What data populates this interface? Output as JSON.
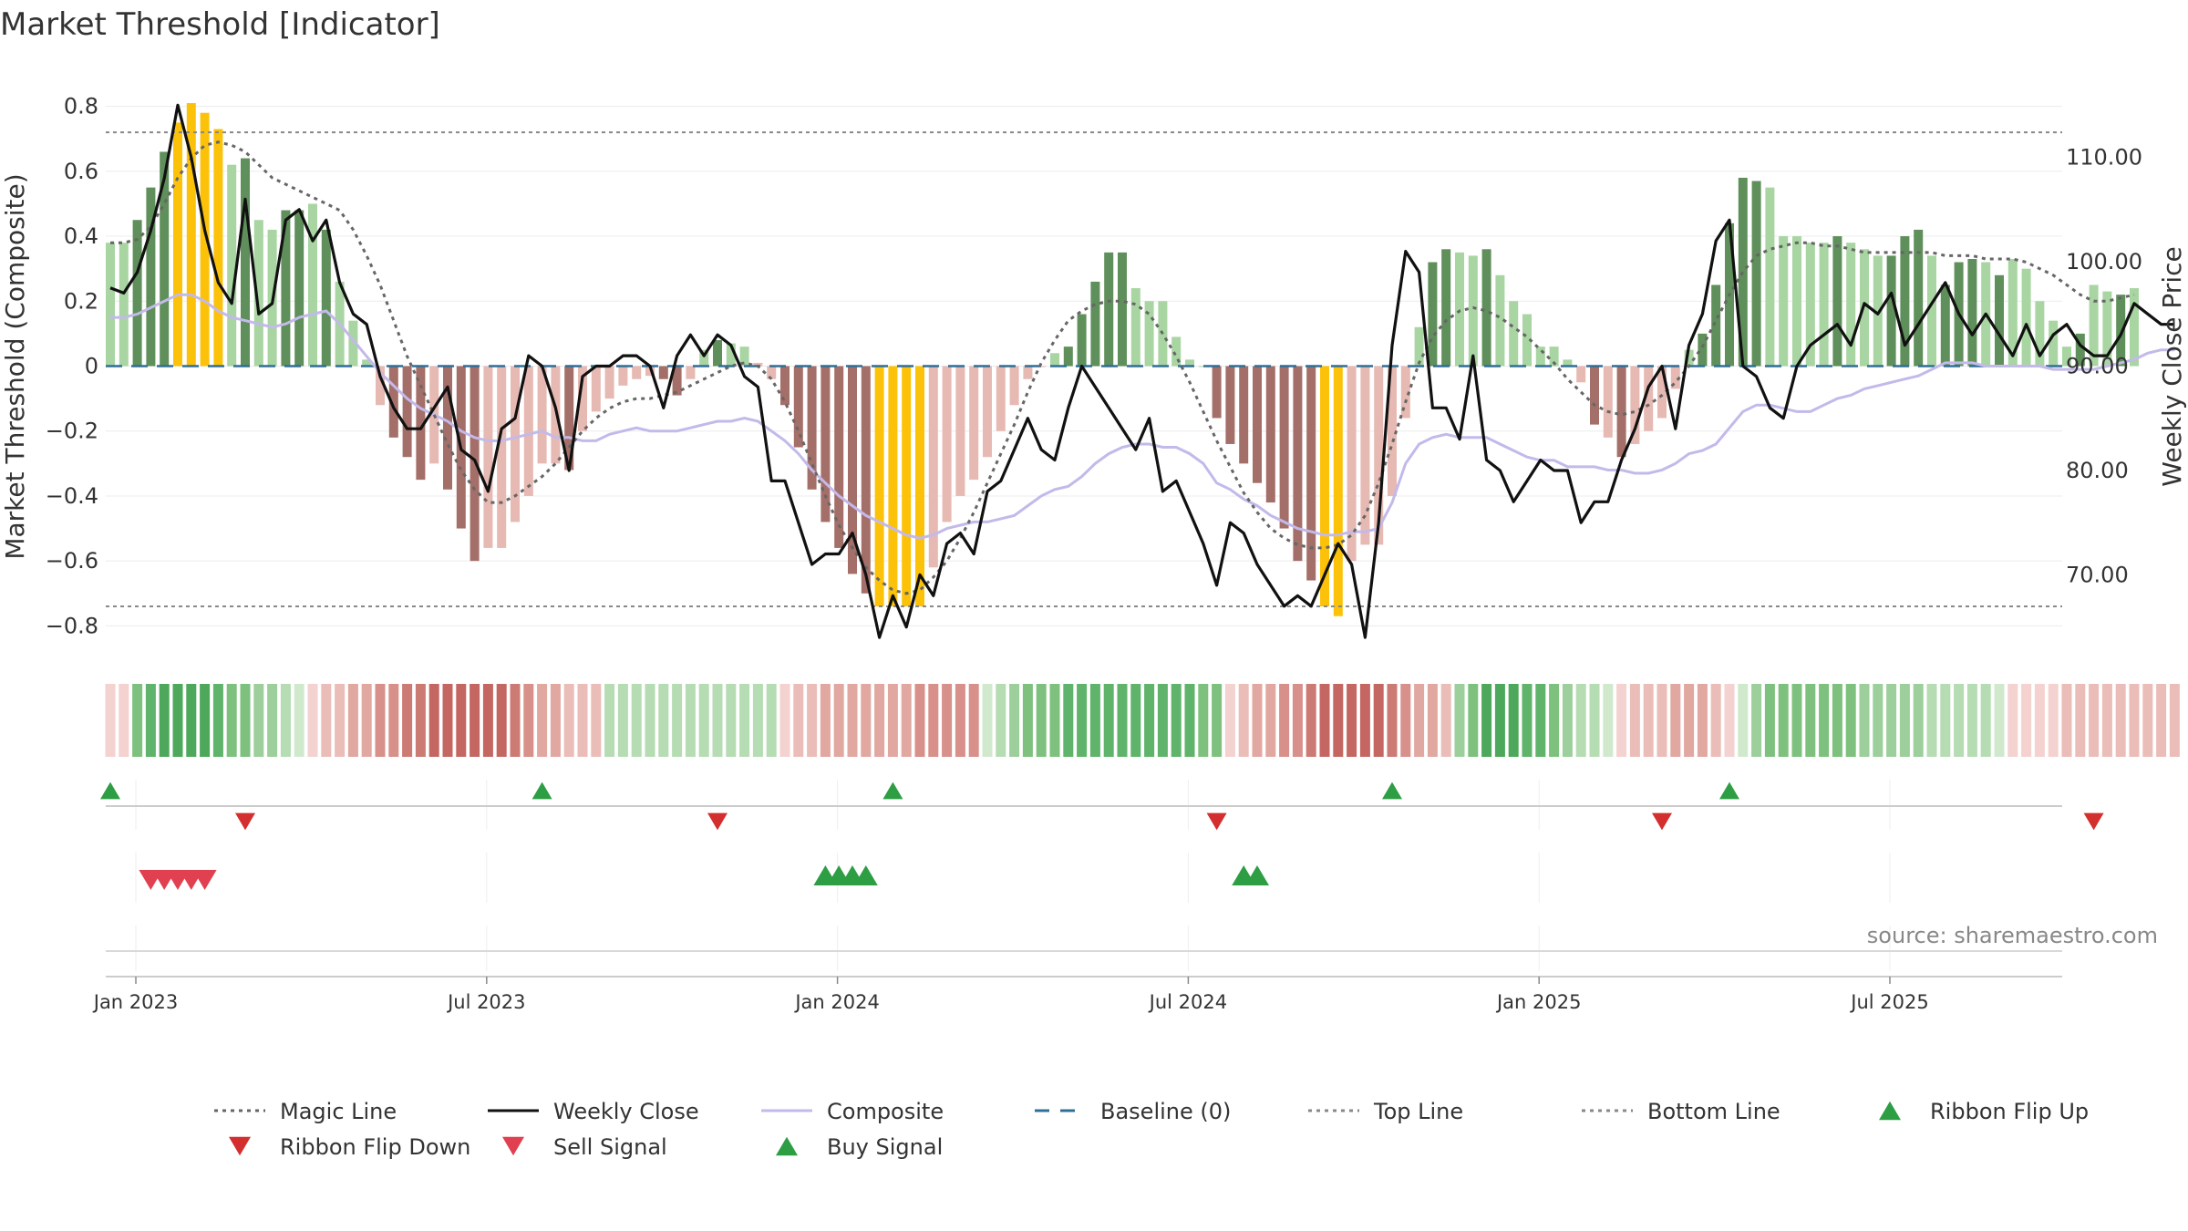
{
  "chart_data": {
    "type": "bar",
    "title": "Market Threshold [Indicator]",
    "ylabel_left": "Market Threshold (Composite)",
    "ylabel_right": "Weekly Close Price",
    "source": "source: sharemaestro.com",
    "ylim_left": [
      -0.9,
      0.9
    ],
    "ylim_right": [
      62,
      118
    ],
    "left_ticks": [
      0.8,
      0.6,
      0.4,
      0.2,
      0,
      -0.2,
      -0.4,
      -0.6,
      -0.8
    ],
    "left_tick_labels": [
      "0.8",
      "0.6",
      "0.4",
      "0.2",
      "0",
      "−0.2",
      "−0.4",
      "−0.6",
      "−0.8"
    ],
    "right_ticks": [
      110,
      100,
      90,
      80,
      70
    ],
    "right_tick_labels": [
      "110.00",
      "100.00",
      "90.00",
      "80.00",
      "70.00"
    ],
    "top_line": 0.72,
    "bottom_line": -0.74,
    "baseline": 0,
    "x_tick_weeks": [
      1,
      27,
      53,
      79,
      105,
      131
    ],
    "x_tick_labels": [
      "Jan 2023",
      "Jul 2023",
      "Jan 2024",
      "Jul 2024",
      "Jan 2025",
      "Jul 2025"
    ],
    "composite_bars": [
      0.38,
      0.38,
      0.45,
      0.55,
      0.66,
      0.75,
      0.81,
      0.78,
      0.73,
      0.62,
      0.64,
      0.45,
      0.42,
      0.48,
      0.48,
      0.5,
      0.42,
      0.26,
      0.14,
      0.02,
      -0.12,
      -0.22,
      -0.28,
      -0.35,
      -0.3,
      -0.38,
      -0.5,
      -0.6,
      -0.56,
      -0.56,
      -0.48,
      -0.4,
      -0.3,
      -0.3,
      -0.32,
      -0.2,
      -0.14,
      -0.1,
      -0.06,
      -0.04,
      -0.03,
      -0.04,
      -0.09,
      -0.04,
      0.05,
      0.08,
      0.07,
      0.06,
      0.01,
      -0.04,
      -0.12,
      -0.25,
      -0.38,
      -0.48,
      -0.56,
      -0.64,
      -0.7,
      -0.74,
      -0.74,
      -0.74,
      -0.74,
      -0.62,
      -0.48,
      -0.4,
      -0.35,
      -0.28,
      -0.2,
      -0.12,
      -0.04,
      0,
      0.04,
      0.06,
      0.16,
      0.26,
      0.35,
      0.35,
      0.24,
      0.2,
      0.2,
      0.09,
      0.02,
      0,
      -0.16,
      -0.24,
      -0.3,
      -0.36,
      -0.42,
      -0.5,
      -0.6,
      -0.66,
      -0.74,
      -0.77,
      -0.6,
      -0.55,
      -0.55,
      -0.4,
      -0.16,
      0.12,
      0.32,
      0.36,
      0.35,
      0.34,
      0.36,
      0.28,
      0.2,
      0.16,
      0.06,
      0.06,
      0.02,
      -0.05,
      -0.18,
      -0.22,
      -0.28,
      -0.24,
      -0.2,
      -0.16,
      -0.07,
      0.05,
      0.1,
      0.25,
      0.44,
      0.58,
      0.57,
      0.55,
      0.4,
      0.4,
      0.38,
      0.38,
      0.4,
      0.38,
      0.36,
      0.34,
      0.34,
      0.4,
      0.42,
      0.34,
      0.25,
      0.32,
      0.33,
      0.32,
      0.28,
      0.33,
      0.3,
      0.2,
      0.14,
      0.06,
      0.1,
      0.25,
      0.23,
      0.22,
      0.24
    ],
    "composite_line": [
      0.15,
      0.15,
      0.16,
      0.18,
      0.2,
      0.22,
      0.22,
      0.2,
      0.17,
      0.15,
      0.14,
      0.13,
      0.12,
      0.13,
      0.15,
      0.16,
      0.17,
      0.13,
      0.08,
      0.03,
      -0.02,
      -0.06,
      -0.1,
      -0.13,
      -0.15,
      -0.17,
      -0.2,
      -0.22,
      -0.23,
      -0.23,
      -0.22,
      -0.21,
      -0.2,
      -0.22,
      -0.22,
      -0.23,
      -0.23,
      -0.21,
      -0.2,
      -0.19,
      -0.2,
      -0.2,
      -0.2,
      -0.19,
      -0.18,
      -0.17,
      -0.17,
      -0.16,
      -0.17,
      -0.2,
      -0.23,
      -0.27,
      -0.32,
      -0.36,
      -0.4,
      -0.43,
      -0.46,
      -0.48,
      -0.5,
      -0.52,
      -0.53,
      -0.52,
      -0.5,
      -0.49,
      -0.48,
      -0.48,
      -0.47,
      -0.46,
      -0.43,
      -0.4,
      -0.38,
      -0.37,
      -0.34,
      -0.3,
      -0.27,
      -0.25,
      -0.24,
      -0.24,
      -0.25,
      -0.25,
      -0.27,
      -0.3,
      -0.36,
      -0.38,
      -0.41,
      -0.43,
      -0.46,
      -0.48,
      -0.5,
      -0.51,
      -0.52,
      -0.52,
      -0.51,
      -0.51,
      -0.5,
      -0.42,
      -0.3,
      -0.24,
      -0.22,
      -0.21,
      -0.22,
      -0.22,
      -0.22,
      -0.24,
      -0.26,
      -0.28,
      -0.29,
      -0.29,
      -0.31,
      -0.31,
      -0.31,
      -0.32,
      -0.32,
      -0.33,
      -0.33,
      -0.32,
      -0.3,
      -0.27,
      -0.26,
      -0.24,
      -0.19,
      -0.14,
      -0.12,
      -0.12,
      -0.13,
      -0.14,
      -0.14,
      -0.12,
      -0.1,
      -0.09,
      -0.07,
      -0.06,
      -0.05,
      -0.04,
      -0.03,
      -0.01,
      0.01,
      0.01,
      0.01,
      0,
      0,
      0,
      0,
      0,
      -0.01,
      -0.01,
      -0.01,
      -0.01,
      0,
      0.01,
      0.02,
      0.04,
      0.05,
      0.05
    ],
    "magic_line": [
      0.38,
      0.38,
      0.39,
      0.43,
      0.5,
      0.58,
      0.64,
      0.68,
      0.69,
      0.68,
      0.66,
      0.62,
      0.58,
      0.56,
      0.54,
      0.52,
      0.5,
      0.48,
      0.42,
      0.34,
      0.25,
      0.14,
      0.03,
      -0.06,
      -0.15,
      -0.24,
      -0.32,
      -0.38,
      -0.42,
      -0.42,
      -0.4,
      -0.37,
      -0.34,
      -0.3,
      -0.25,
      -0.2,
      -0.16,
      -0.13,
      -0.11,
      -0.1,
      -0.1,
      -0.09,
      -0.08,
      -0.06,
      -0.04,
      -0.02,
      0,
      0.01,
      0,
      -0.04,
      -0.11,
      -0.2,
      -0.3,
      -0.4,
      -0.49,
      -0.56,
      -0.62,
      -0.66,
      -0.69,
      -0.7,
      -0.69,
      -0.65,
      -0.6,
      -0.53,
      -0.45,
      -0.36,
      -0.27,
      -0.18,
      -0.08,
      0.01,
      0.08,
      0.14,
      0.17,
      0.19,
      0.2,
      0.2,
      0.19,
      0.16,
      0.1,
      0.03,
      -0.05,
      -0.14,
      -0.23,
      -0.31,
      -0.39,
      -0.45,
      -0.5,
      -0.53,
      -0.55,
      -0.56,
      -0.56,
      -0.55,
      -0.52,
      -0.46,
      -0.36,
      -0.24,
      -0.11,
      0.01,
      0.09,
      0.14,
      0.17,
      0.18,
      0.17,
      0.15,
      0.12,
      0.09,
      0.05,
      0.01,
      -0.04,
      -0.08,
      -0.12,
      -0.14,
      -0.15,
      -0.14,
      -0.12,
      -0.09,
      -0.05,
      0,
      0.06,
      0.14,
      0.22,
      0.29,
      0.34,
      0.36,
      0.37,
      0.38,
      0.38,
      0.37,
      0.37,
      0.36,
      0.35,
      0.35,
      0.35,
      0.35,
      0.35,
      0.35,
      0.34,
      0.34,
      0.34,
      0.33,
      0.33,
      0.33,
      0.32,
      0.3,
      0.28,
      0.25,
      0.22,
      0.2,
      0.2,
      0.21,
      0.22
    ],
    "weekly_close": [
      97.5,
      97,
      99,
      103,
      108,
      115,
      110,
      103,
      98,
      96,
      106,
      95,
      96,
      104,
      105,
      102,
      104,
      98,
      95,
      94,
      89,
      86,
      84,
      84,
      86,
      88,
      82,
      81,
      78,
      84,
      85,
      91,
      90,
      86,
      80,
      89,
      90,
      90,
      91,
      91,
      90,
      86,
      91,
      93,
      91,
      93,
      92,
      89,
      88,
      79,
      79,
      75,
      71,
      72,
      72,
      74,
      70,
      64,
      68,
      65,
      70,
      68,
      73,
      74,
      72,
      78,
      79,
      82,
      85,
      82,
      81,
      86,
      90,
      88,
      86,
      84,
      82,
      85,
      78,
      79,
      76,
      73,
      69,
      75,
      74,
      71,
      69,
      67,
      68,
      67,
      70,
      73,
      71,
      64,
      75,
      92,
      101,
      99,
      86,
      86,
      83,
      91,
      81,
      80,
      77,
      79,
      81,
      80,
      80,
      75,
      77,
      77,
      81,
      84,
      88,
      90,
      84,
      92,
      95,
      102,
      104,
      90,
      89,
      86,
      85,
      90,
      92,
      93,
      94,
      92,
      96,
      95,
      97,
      92,
      94,
      96,
      98,
      95,
      93,
      95,
      93,
      91,
      94,
      91,
      93,
      94,
      92,
      91,
      91,
      93,
      96,
      95,
      94,
      94
    ],
    "bar_shades": [
      "#a8d5a2",
      "#a8d5a2",
      "#5f8f5a",
      "#5f8f5a",
      "#5f8f5a",
      "#fcc20a",
      "#fcc20a",
      "#fcc20a",
      "#fcc20a",
      "#a8d5a2",
      "#5f8f5a",
      "#a8d5a2",
      "#a8d5a2",
      "#5f8f5a",
      "#5f8f5a",
      "#a8d5a2",
      "#5f8f5a",
      "#a8d5a2",
      "#a8d5a2",
      "#a8d5a2",
      "#e6b9b3",
      "#a46f69",
      "#a46f69",
      "#a46f69",
      "#e6b9b3",
      "#a46f69",
      "#a46f69",
      "#a46f69",
      "#e6b9b3",
      "#e6b9b3",
      "#e6b9b3",
      "#e6b9b3",
      "#e6b9b3",
      "#e6b9b3",
      "#a46f69",
      "#e6b9b3",
      "#e6b9b3",
      "#e6b9b3",
      "#e6b9b3",
      "#e6b9b3",
      "#e6b9b3",
      "#a46f69",
      "#a46f69",
      "#e6b9b3",
      "#a8d5a2",
      "#5f8f5a",
      "#a8d5a2",
      "#a8d5a2",
      "#e6b9b3",
      "#e6b9b3",
      "#a46f69",
      "#a46f69",
      "#a46f69",
      "#a46f69",
      "#a46f69",
      "#a46f69",
      "#a46f69",
      "#fcc20a",
      "#fcc20a",
      "#fcc20a",
      "#fcc20a",
      "#e6b9b3",
      "#e6b9b3",
      "#e6b9b3",
      "#e6b9b3",
      "#e6b9b3",
      "#e6b9b3",
      "#e6b9b3",
      "#e6b9b3",
      "#e6b9b3",
      "#a8d5a2",
      "#5f8f5a",
      "#5f8f5a",
      "#5f8f5a",
      "#5f8f5a",
      "#5f8f5a",
      "#a8d5a2",
      "#a8d5a2",
      "#a8d5a2",
      "#a8d5a2",
      "#a8d5a2",
      "#a8d5a2",
      "#a46f69",
      "#a46f69",
      "#a46f69",
      "#a46f69",
      "#a46f69",
      "#a46f69",
      "#a46f69",
      "#a46f69",
      "#fcc20a",
      "#fcc20a",
      "#e6b9b3",
      "#e6b9b3",
      "#e6b9b3",
      "#e6b9b3",
      "#e6b9b3",
      "#a8d5a2",
      "#5f8f5a",
      "#5f8f5a",
      "#a8d5a2",
      "#a8d5a2",
      "#5f8f5a",
      "#a8d5a2",
      "#a8d5a2",
      "#a8d5a2",
      "#a8d5a2",
      "#a8d5a2",
      "#a8d5a2",
      "#e6b9b3",
      "#a46f69",
      "#e6b9b3",
      "#a46f69",
      "#e6b9b3",
      "#e6b9b3",
      "#e6b9b3",
      "#e6b9b3",
      "#a8d5a2",
      "#5f8f5a",
      "#5f8f5a",
      "#5f8f5a",
      "#5f8f5a",
      "#5f8f5a",
      "#a8d5a2",
      "#a8d5a2",
      "#a8d5a2",
      "#a8d5a2",
      "#a8d5a2",
      "#5f8f5a",
      "#a8d5a2",
      "#a8d5a2",
      "#a8d5a2",
      "#5f8f5a",
      "#5f8f5a",
      "#5f8f5a",
      "#a8d5a2",
      "#5f8f5a",
      "#5f8f5a",
      "#5f8f5a",
      "#a8d5a2",
      "#5f8f5a",
      "#a8d5a2",
      "#a8d5a2",
      "#a8d5a2",
      "#a8d5a2",
      "#a8d5a2",
      "#5f8f5a",
      "#a8d5a2",
      "#a8d5a2",
      "#5f8f5a"
    ],
    "ribbon_colors": [
      "#f3d2cf",
      "#f3d2cf",
      "#7ec17e",
      "#5fb36a",
      "#4ea85c",
      "#4ea85c",
      "#4ea85c",
      "#4ea85c",
      "#5fb36a",
      "#7ec17e",
      "#7ec17e",
      "#9ccf9b",
      "#9ccf9b",
      "#b5dcb3",
      "#d0e9cd",
      "#f3d2cf",
      "#ebbdb8",
      "#ebbdb8",
      "#e1a7a1",
      "#e1a7a1",
      "#d7908a",
      "#d7908a",
      "#cc7a74",
      "#cc7a74",
      "#c46762",
      "#c46762",
      "#c46762",
      "#c46762",
      "#c46762",
      "#c46762",
      "#cc7a74",
      "#d7908a",
      "#e1a7a1",
      "#e1a7a1",
      "#ebbdb8",
      "#ebbdb8",
      "#ebbdb8",
      "#b5dcb3",
      "#b5dcb3",
      "#b5dcb3",
      "#b5dcb3",
      "#b5dcb3",
      "#b5dcb3",
      "#b5dcb3",
      "#b5dcb3",
      "#b5dcb3",
      "#b5dcb3",
      "#b5dcb3",
      "#b5dcb3",
      "#b5dcb3",
      "#f3d2cf",
      "#ebbdb8",
      "#ebbdb8",
      "#e1a7a1",
      "#e1a7a1",
      "#e1a7a1",
      "#e1a7a1",
      "#e1a7a1",
      "#e1a7a1",
      "#e1a7a1",
      "#d7908a",
      "#d7908a",
      "#d7908a",
      "#d7908a",
      "#d7908a",
      "#d0e9cd",
      "#b5dcb3",
      "#9ccf9b",
      "#7ec17e",
      "#7ec17e",
      "#7ec17e",
      "#5fb36a",
      "#5fb36a",
      "#5fb36a",
      "#5fb36a",
      "#5fb36a",
      "#5fb36a",
      "#5fb36a",
      "#5fb36a",
      "#5fb36a",
      "#5fb36a",
      "#7ec17e",
      "#7ec17e",
      "#f3d2cf",
      "#ebbdb8",
      "#e1a7a1",
      "#e1a7a1",
      "#d7908a",
      "#d7908a",
      "#cc7a74",
      "#c46762",
      "#c46762",
      "#c46762",
      "#c46762",
      "#c46762",
      "#cc7a74",
      "#d7908a",
      "#e1a7a1",
      "#e1a7a1",
      "#ebbdb8",
      "#9ccf9b",
      "#7ec17e",
      "#4ea85c",
      "#4ea85c",
      "#4ea85c",
      "#5fb36a",
      "#5fb36a",
      "#7ec17e",
      "#9ccf9b",
      "#b5dcb3",
      "#b5dcb3",
      "#d0e9cd",
      "#f3d2cf",
      "#ebbdb8",
      "#ebbdb8",
      "#ebbdb8",
      "#e1a7a1",
      "#e1a7a1",
      "#e1a7a1",
      "#ebbdb8",
      "#f3d2cf",
      "#d0e9cd",
      "#9ccf9b",
      "#7ec17e",
      "#7ec17e",
      "#7ec17e",
      "#7ec17e",
      "#7ec17e",
      "#7ec17e",
      "#7ec17e",
      "#9ccf9b",
      "#9ccf9b",
      "#9ccf9b",
      "#9ccf9b",
      "#9ccf9b",
      "#b5dcb3",
      "#b5dcb3",
      "#b5dcb3",
      "#b5dcb3",
      "#b5dcb3",
      "#d0e9cd",
      "#f3d2cf",
      "#f3d2cf",
      "#f3d2cf",
      "#f3d2cf",
      "#ebbdb8",
      "#ebbdb8",
      "#ebbdb8",
      "#ebbdb8",
      "#ebbdb8",
      "#ebbdb8",
      "#ebbdb8",
      "#ebbdb8",
      "#ebbdb8"
    ],
    "ribbon_flip_up_weeks": [
      1,
      33,
      59,
      96,
      121
    ],
    "ribbon_flip_down_weeks": [
      11,
      46,
      83,
      116,
      148
    ],
    "sell_signal_weeks": [
      4,
      5,
      6,
      7,
      8
    ],
    "buy_signal_weeks": [
      54,
      55,
      56,
      57,
      85,
      86
    ],
    "legend": [
      {
        "label": "Magic Line",
        "kind": "dotted-line",
        "color": "#666666"
      },
      {
        "label": "Weekly Close",
        "kind": "solid-line",
        "color": "#111111"
      },
      {
        "label": "Composite",
        "kind": "solid-line",
        "color": "#c3b9ea"
      },
      {
        "label": "Baseline (0)",
        "kind": "dashed-line",
        "color": "#2f6f97"
      },
      {
        "label": "Top Line",
        "kind": "dotted-line",
        "color": "#888888"
      },
      {
        "label": "Bottom Line",
        "kind": "dotted-line",
        "color": "#888888"
      },
      {
        "label": "Ribbon Flip Up",
        "kind": "triangle-up",
        "color": "#2e9e44"
      },
      {
        "label": "Ribbon Flip Down",
        "kind": "triangle-down",
        "color": "#d32f2f"
      },
      {
        "label": "Sell Signal",
        "kind": "triangle-down",
        "color": "#e04050"
      },
      {
        "label": "Buy Signal",
        "kind": "triangle-up",
        "color": "#2e9e44"
      }
    ],
    "colors": {
      "highlight": "#fcc20a",
      "pos_dark": "#5f8f5a",
      "pos_light": "#a8d5a2",
      "neg_dark": "#a46f69",
      "neg_light": "#e6b9b3",
      "weekly_close": "#111111",
      "composite": "#c3b9ea",
      "magic": "#666666",
      "baseline": "#2f6f97",
      "threshold": "#888888",
      "flip_up": "#2e9e44",
      "flip_down": "#d32f2f",
      "sell": "#e04050",
      "buy": "#2e9e44"
    }
  }
}
